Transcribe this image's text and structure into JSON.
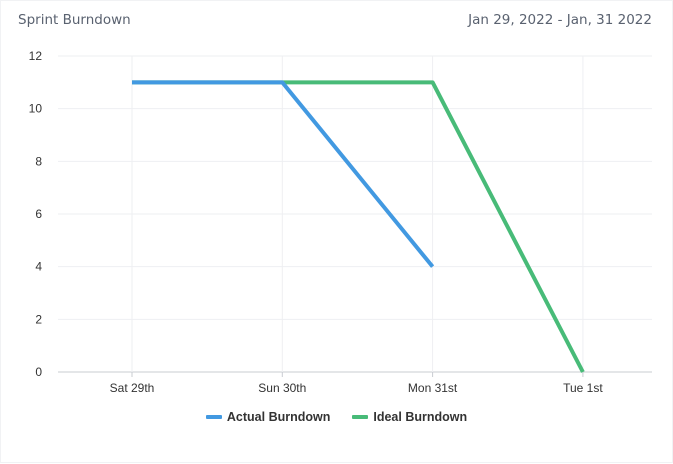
{
  "header": {
    "title": "Sprint Burndown",
    "date_range": "Jan 29, 2022 - Jan, 31 2022"
  },
  "chart_data": {
    "type": "line",
    "x": [
      "Sat 29th",
      "Sun 30th",
      "Mon 31st",
      "Tue 1st"
    ],
    "yticks": [
      0,
      2,
      4,
      6,
      8,
      10,
      12
    ],
    "ylim": [
      0,
      12
    ],
    "grid": true,
    "legend_position": "bottom",
    "series": [
      {
        "name": "Ideal Burndown",
        "values": [
          11,
          11,
          11,
          0
        ],
        "color": "#48bb78"
      },
      {
        "name": "Actual Burndown",
        "values": [
          11,
          11,
          4,
          null
        ],
        "color": "#4299e1"
      }
    ],
    "legend_order": [
      "Actual Burndown",
      "Ideal Burndown"
    ]
  }
}
